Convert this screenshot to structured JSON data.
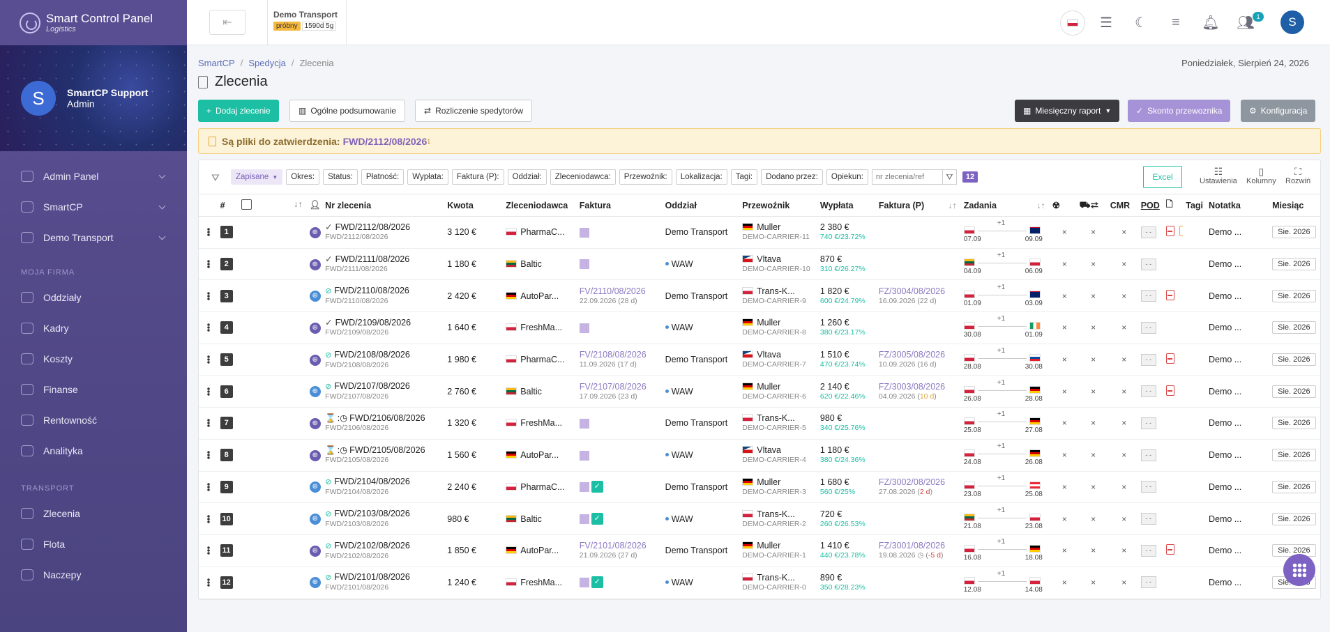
{
  "sidebar": {
    "brand_title": "Smart Control Panel",
    "brand_sub": "Logistics",
    "user_initial": "S",
    "user_name": "SmartCP Support",
    "user_role": "Admin",
    "nav_top": [
      {
        "label": "Admin Panel",
        "icon": "admin-icon"
      },
      {
        "label": "SmartCP",
        "icon": "home-icon"
      },
      {
        "label": "Demo Transport",
        "icon": "user-circle-icon"
      }
    ],
    "section_company": "MOJA FIRMA",
    "nav_company": [
      {
        "label": "Oddziały",
        "icon": "branches-icon"
      },
      {
        "label": "Kadry",
        "icon": "people-icon"
      },
      {
        "label": "Koszty",
        "icon": "coins-icon"
      },
      {
        "label": "Finanse",
        "icon": "dollar-icon"
      },
      {
        "label": "Rentowność",
        "icon": "bars-icon"
      },
      {
        "label": "Analityka",
        "icon": "network-icon"
      }
    ],
    "section_transport": "TRANSPORT",
    "nav_transport": [
      {
        "label": "Zlecenia",
        "icon": "document-icon"
      },
      {
        "label": "Flota",
        "icon": "truck-icon"
      },
      {
        "label": "Naczepy",
        "icon": "trailer-icon"
      }
    ]
  },
  "topbar": {
    "company": "Demo Transport",
    "trial_label": "próbny",
    "trial_days": "1590d 5g",
    "user_initial": "S",
    "notif_count": "1"
  },
  "breadcrumb": [
    "SmartCP",
    "Spedycja",
    "Zlecenia"
  ],
  "date": "Poniedziałek, Sierpień 24, 2026",
  "title": "Zlecenia",
  "buttons": {
    "add": "Dodaj zlecenie",
    "summary": "Ogólne podsumowanie",
    "settlement": "Rozliczenie spedytorów",
    "report": "Miesięczny raport",
    "skonto": "Skonto przewoznika",
    "config": "Konfiguracja"
  },
  "alert": {
    "text": "Są pliki do zatwierdzenia:",
    "ref": "FWD/2112/08/2026",
    "sup": "1"
  },
  "filters": {
    "saved": "Zapisane",
    "chips": [
      "Okres:",
      "Status:",
      "Płatność:",
      "Wypłata:",
      "Faktura (P):",
      "Oddział:",
      "Zleceniodawca:",
      "Przewoźnik:",
      "Lokalizacja:",
      "Tagi:",
      "Dodano przez:",
      "Opiekun:"
    ],
    "search_placeholder": "nr zlecenia/ref",
    "count": "12",
    "excel": "Excel",
    "settings": "Ustawienia",
    "columns": "Kolumny",
    "expand": "Rozwiń"
  },
  "columns": [
    "#",
    "Nr zlecenia",
    "Kwota",
    "Zleceniodawca",
    "Faktura",
    "Oddział",
    "Przewoźnik",
    "Wypłata",
    "Faktura (P)",
    "Zadania",
    "CMR",
    "POD",
    "Tagi",
    "Notatka",
    "Miesiąc"
  ],
  "rows": [
    {
      "n": "1",
      "status": "check",
      "type": "purple",
      "nr": "FWD/2112/08/2026",
      "ref": "FWD/2112/08/2026",
      "kwota": "3 120 €",
      "client_flag": "pl",
      "client": "PharmaC...",
      "inv": "",
      "inv_date": "",
      "inv_ok": false,
      "branch": "Demo Transport",
      "branch_dot": false,
      "carrier_flag": "de",
      "carrier": "Muller",
      "carrier_id": "DEMO-CARRIER-11",
      "pay": "2 380 €",
      "margin": "740 €/23.72%",
      "finv": "",
      "finv_date": "",
      "finv_extra": "",
      "from_flag": "pl",
      "to_flag": "gb",
      "d1": "07.09",
      "d2": "09.09",
      "pdf": true,
      "pdfy": true,
      "notes": "Demo ...",
      "month": "Sie. 2026"
    },
    {
      "n": "2",
      "status": "check",
      "type": "purple",
      "nr": "FWD/2111/08/2026",
      "ref": "FWD/2111/08/2026",
      "kwota": "1 180 €",
      "client_flag": "lt",
      "client": "Baltic",
      "inv": "",
      "inv_date": "",
      "inv_ok": false,
      "branch": "WAW",
      "branch_dot": true,
      "carrier_flag": "cz",
      "carrier": "Vltava",
      "carrier_id": "DEMO-CARRIER-10",
      "pay": "870 €",
      "margin": "310 €/26.27%",
      "finv": "",
      "finv_date": "",
      "finv_extra": "",
      "from_flag": "lt",
      "to_flag": "pl",
      "d1": "04.09",
      "d2": "06.09",
      "pdf": false,
      "pdfy": false,
      "notes": "Demo ...",
      "month": "Sie. 2026"
    },
    {
      "n": "3",
      "status": "ok",
      "type": "blue",
      "nr": "FWD/2110/08/2026",
      "ref": "FWD/2110/08/2026",
      "kwota": "2 420 €",
      "client_flag": "de",
      "client": "AutoPar...",
      "inv": "FV/2110/08/2026",
      "inv_date": "22.09.2026 (28 d)",
      "inv_ok": false,
      "branch": "Demo Transport",
      "branch_dot": false,
      "carrier_flag": "pl",
      "carrier": "Trans-K...",
      "carrier_id": "DEMO-CARRIER-9",
      "pay": "1 820 €",
      "margin": "600 €/24.79%",
      "finv": "FZ/3004/08/2026",
      "finv_date": "16.09.2026 (22 d)",
      "finv_extra": "",
      "from_flag": "pl",
      "to_flag": "gb",
      "d1": "01.09",
      "d2": "03.09",
      "pdf": true,
      "pdfy": false,
      "notes": "Demo ...",
      "month": "Sie. 2026"
    },
    {
      "n": "4",
      "status": "check",
      "type": "purple",
      "nr": "FWD/2109/08/2026",
      "ref": "FWD/2109/08/2026",
      "kwota": "1 640 €",
      "client_flag": "pl",
      "client": "FreshMa...",
      "inv": "",
      "inv_date": "",
      "inv_ok": false,
      "branch": "WAW",
      "branch_dot": true,
      "carrier_flag": "de",
      "carrier": "Muller",
      "carrier_id": "DEMO-CARRIER-8",
      "pay": "1 260 €",
      "margin": "380 €/23.17%",
      "finv": "",
      "finv_date": "",
      "finv_extra": "",
      "from_flag": "pl",
      "to_flag": "ie",
      "d1": "30.08",
      "d2": "01.09",
      "pdf": false,
      "pdfy": false,
      "notes": "Demo ...",
      "month": "Sie. 2026"
    },
    {
      "n": "5",
      "status": "ok",
      "type": "purple",
      "nr": "FWD/2108/08/2026",
      "ref": "FWD/2108/08/2026",
      "kwota": "1 980 €",
      "client_flag": "pl",
      "client": "PharmaC...",
      "inv": "FV/2108/08/2026",
      "inv_date": "11.09.2026 (17 d)",
      "inv_ok": false,
      "branch": "Demo Transport",
      "branch_dot": false,
      "carrier_flag": "cz",
      "carrier": "Vltava",
      "carrier_id": "DEMO-CARRIER-7",
      "pay": "1 510 €",
      "margin": "470 €/23.74%",
      "finv": "FZ/3005/08/2026",
      "finv_date": "10.09.2026 (16 d)",
      "finv_extra": "",
      "from_flag": "pl",
      "to_flag": "sk",
      "d1": "28.08",
      "d2": "30.08",
      "pdf": true,
      "pdfy": false,
      "notes": "Demo ...",
      "month": "Sie. 2026"
    },
    {
      "n": "6",
      "status": "ok",
      "type": "blue",
      "nr": "FWD/2107/08/2026",
      "ref": "FWD/2107/08/2026",
      "kwota": "2 760 €",
      "client_flag": "lt",
      "client": "Baltic",
      "inv": "FV/2107/08/2026",
      "inv_date": "17.09.2026 (23 d)",
      "inv_ok": false,
      "branch": "WAW",
      "branch_dot": true,
      "carrier_flag": "de",
      "carrier": "Muller",
      "carrier_id": "DEMO-CARRIER-6",
      "pay": "2 140 €",
      "margin": "620 €/22.46%",
      "finv": "FZ/3003/08/2026",
      "finv_date": "04.09.2026 (",
      "finv_extra": "10 d",
      "from_flag": "pl",
      "to_flag": "de",
      "d1": "26.08",
      "d2": "28.08",
      "pdf": true,
      "pdfy": false,
      "notes": "Demo ...",
      "month": "Sie. 2026"
    },
    {
      "n": "7",
      "status": "wait",
      "type": "purple",
      "nr": "FWD/2106/08/2026",
      "ref": "FWD/2106/08/2026",
      "kwota": "1 320 €",
      "client_flag": "pl",
      "client": "FreshMa...",
      "inv": "",
      "inv_date": "",
      "inv_ok": false,
      "branch": "Demo Transport",
      "branch_dot": false,
      "carrier_flag": "pl",
      "carrier": "Trans-K...",
      "carrier_id": "DEMO-CARRIER-5",
      "pay": "980 €",
      "margin": "340 €/25.76%",
      "finv": "",
      "finv_date": "",
      "finv_extra": "",
      "from_flag": "pl",
      "to_flag": "de",
      "d1": "25.08",
      "d2": "27.08",
      "pdf": false,
      "pdfy": false,
      "notes": "Demo ...",
      "month": "Sie. 2026"
    },
    {
      "n": "8",
      "status": "wait",
      "type": "purple",
      "nr": "FWD/2105/08/2026",
      "ref": "FWD/2105/08/2026",
      "kwota": "1 560 €",
      "client_flag": "de",
      "client": "AutoPar...",
      "inv": "",
      "inv_date": "",
      "inv_ok": false,
      "branch": "WAW",
      "branch_dot": true,
      "carrier_flag": "cz",
      "carrier": "Vltava",
      "carrier_id": "DEMO-CARRIER-4",
      "pay": "1 180 €",
      "margin": "380 €/24.36%",
      "finv": "",
      "finv_date": "",
      "finv_extra": "",
      "from_flag": "pl",
      "to_flag": "de",
      "d1": "24.08",
      "d2": "26.08",
      "pdf": false,
      "pdfy": false,
      "notes": "Demo ...",
      "month": "Sie. 2026"
    },
    {
      "n": "9",
      "status": "ok",
      "type": "blue",
      "nr": "FWD/2104/08/2026",
      "ref": "FWD/2104/08/2026",
      "kwota": "2 240 €",
      "client_flag": "pl",
      "client": "PharmaC...",
      "inv": "",
      "inv_date": "",
      "inv_ok": true,
      "branch": "Demo Transport",
      "branch_dot": false,
      "carrier_flag": "de",
      "carrier": "Muller",
      "carrier_id": "DEMO-CARRIER-3",
      "pay": "1 680 €",
      "margin": "560 €/25%",
      "finv": "FZ/3002/08/2026",
      "finv_date": "27.08.2026 (",
      "finv_extra": "2 d",
      "from_flag": "pl",
      "to_flag": "at",
      "d1": "23.08",
      "d2": "25.08",
      "pdf": false,
      "pdfy": false,
      "notes": "Demo ...",
      "month": "Sie. 2026"
    },
    {
      "n": "10",
      "status": "ok",
      "type": "blue",
      "nr": "FWD/2103/08/2026",
      "ref": "FWD/2103/08/2026",
      "kwota": "980 €",
      "client_flag": "lt",
      "client": "Baltic",
      "inv": "",
      "inv_date": "",
      "inv_ok": true,
      "branch": "WAW",
      "branch_dot": true,
      "carrier_flag": "pl",
      "carrier": "Trans-K...",
      "carrier_id": "DEMO-CARRIER-2",
      "pay": "720 €",
      "margin": "260 €/26.53%",
      "finv": "",
      "finv_date": "",
      "finv_extra": "",
      "from_flag": "lt",
      "to_flag": "pl",
      "d1": "21.08",
      "d2": "23.08",
      "pdf": false,
      "pdfy": false,
      "notes": "Demo ...",
      "month": "Sie. 2026"
    },
    {
      "n": "11",
      "status": "ok",
      "type": "purple",
      "nr": "FWD/2102/08/2026",
      "ref": "FWD/2102/08/2026",
      "kwota": "1 850 €",
      "client_flag": "de",
      "client": "AutoPar...",
      "inv": "FV/2101/08/2026",
      "inv_date": "21.09.2026 (27 d)",
      "inv_ok": false,
      "branch": "Demo Transport",
      "branch_dot": false,
      "carrier_flag": "de",
      "carrier": "Muller",
      "carrier_id": "DEMO-CARRIER-1",
      "pay": "1 410 €",
      "margin": "440 €/23.78%",
      "finv": "FZ/3001/08/2026",
      "finv_date": "19.08.2026 ◷ (",
      "finv_extra": "-5 d",
      "from_flag": "pl",
      "to_flag": "de",
      "d1": "16.08",
      "d2": "18.08",
      "pdf": true,
      "pdfy": false,
      "notes": "Demo ...",
      "month": "Sie. 2026"
    },
    {
      "n": "12",
      "status": "ok",
      "type": "blue",
      "nr": "FWD/2101/08/2026",
      "ref": "FWD/2101/08/2026",
      "kwota": "1 240 €",
      "client_flag": "pl",
      "client": "FreshMa...",
      "inv": "",
      "inv_date": "",
      "inv_ok": true,
      "branch": "WAW",
      "branch_dot": true,
      "carrier_flag": "pl",
      "carrier": "Trans-K...",
      "carrier_id": "DEMO-CARRIER-0",
      "pay": "890 €",
      "margin": "350 €/28.23%",
      "finv": "",
      "finv_date": "",
      "finv_extra": "",
      "from_flag": "pl",
      "to_flag": "pl",
      "d1": "12.08",
      "d2": "14.08",
      "pdf": false,
      "pdfy": false,
      "notes": "Demo ...",
      "month": "Sie. 2026"
    }
  ],
  "route_plus": "+1",
  "x_mark": "×",
  "pod_mark": "- -"
}
